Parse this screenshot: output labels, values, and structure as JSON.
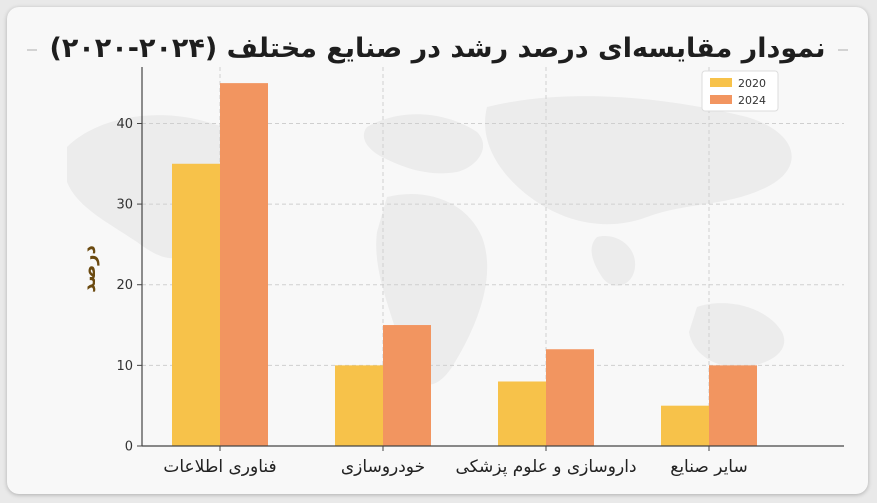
{
  "page": {
    "title": "نمودار مقایسه‌ای درصد رشد در صنایع مختلف (۲۰۲۴-۲۰۲۰)"
  },
  "chart_data": {
    "type": "bar",
    "title": "نمودار مقایسه‌ای درصد رشد در صنایع مختلف (۲۰۲۴-۲۰۲۰)",
    "xlabel": "",
    "ylabel": "درصد",
    "categories": [
      "فناوری اطلاعات",
      "خودروسازی",
      "داروسازی و علوم پزشکی",
      "سایر صنایع"
    ],
    "series": [
      {
        "name": "2020",
        "values": [
          35,
          10,
          8,
          5
        ],
        "color": "#f7c24a"
      },
      {
        "name": "2024",
        "values": [
          45,
          15,
          12,
          10
        ],
        "color": "#f29560"
      }
    ],
    "ylim": [
      0,
      47
    ],
    "yticks": [
      0,
      10,
      20,
      30,
      40
    ],
    "grid": true,
    "legend": "top-right"
  }
}
